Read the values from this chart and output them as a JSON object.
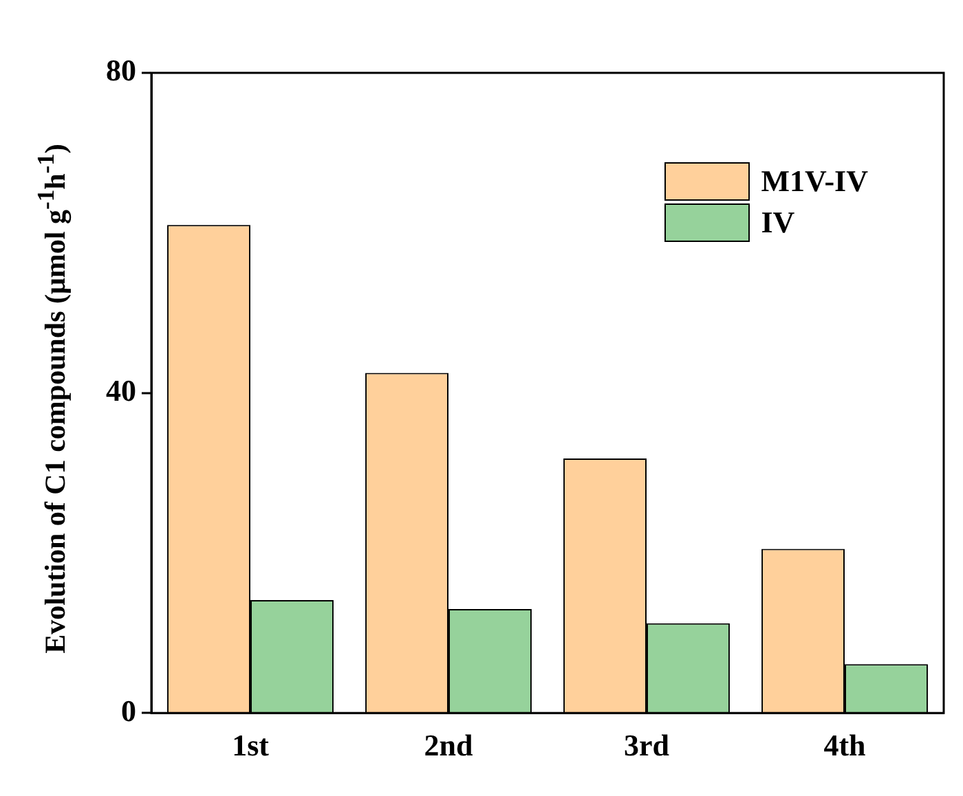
{
  "chart_data": {
    "type": "bar",
    "ylabel": "Evolution of C1 compounds (μmol g$^{-1}$h$^{-1}$)",
    "categories": [
      "1st",
      "2nd",
      "3rd",
      "4th"
    ],
    "series": [
      {
        "name": "M1V-IV",
        "color": "#ffd09b",
        "values": [
          61,
          42.5,
          31.8,
          20.5
        ]
      },
      {
        "name": "IV",
        "color": "#96d29b",
        "values": [
          14.1,
          13,
          11.2,
          6.1
        ]
      }
    ],
    "ylim": [
      0,
      80
    ],
    "yticks": [
      0,
      40,
      80
    ],
    "grid": false,
    "legend": "top right"
  }
}
